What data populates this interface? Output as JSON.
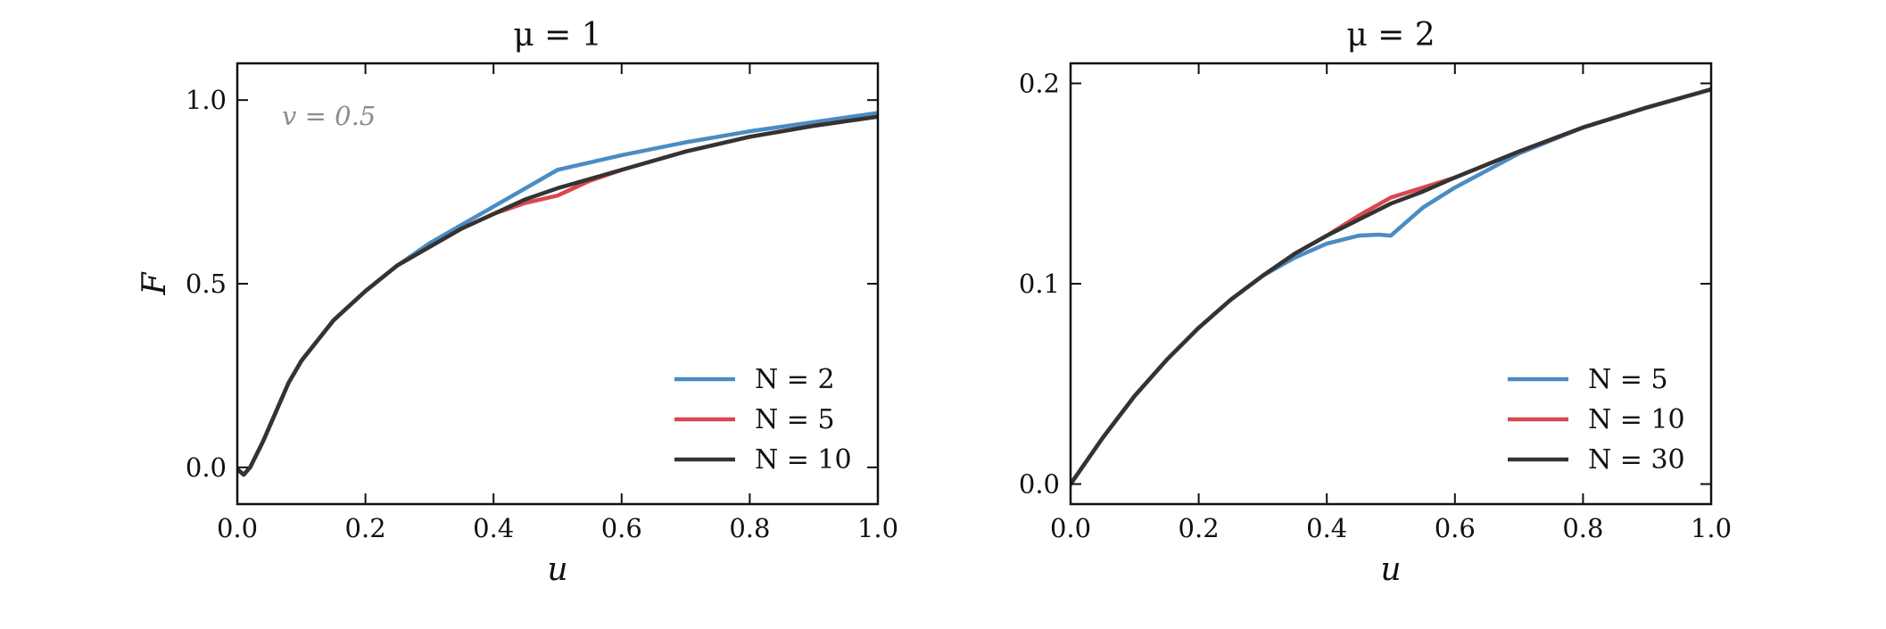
{
  "chart_data": [
    {
      "type": "line",
      "title": "μ = 1",
      "xlabel": "u",
      "ylabel": "F",
      "xlim": [
        0.0,
        1.0
      ],
      "ylim": [
        -0.1,
        1.1
      ],
      "xticks": [
        0.0,
        0.2,
        0.4,
        0.6,
        0.8,
        1.0
      ],
      "xtick_labels": [
        "0.0",
        "0.2",
        "0.4",
        "0.6",
        "0.8",
        "1.0"
      ],
      "yticks": [
        0.0,
        0.5,
        1.0
      ],
      "ytick_labels": [
        "0.0",
        "0.5",
        "1.0"
      ],
      "grid": false,
      "legend_position": "lower-right",
      "annotation": "v = 0.5",
      "series": [
        {
          "name": "N = 2",
          "color": "#4a8cc3",
          "x": [
            0.0,
            0.01,
            0.02,
            0.04,
            0.06,
            0.08,
            0.1,
            0.15,
            0.2,
            0.25,
            0.3,
            0.35,
            0.4,
            0.45,
            0.5,
            0.6,
            0.7,
            0.8,
            0.9,
            1.0
          ],
          "y": [
            -0.005,
            -0.02,
            0.0,
            0.07,
            0.15,
            0.23,
            0.29,
            0.4,
            0.48,
            0.55,
            0.61,
            0.66,
            0.71,
            0.76,
            0.81,
            0.85,
            0.885,
            0.915,
            0.94,
            0.965
          ]
        },
        {
          "name": "N = 5",
          "color": "#d9474f",
          "x": [
            0.0,
            0.01,
            0.02,
            0.04,
            0.06,
            0.08,
            0.1,
            0.15,
            0.2,
            0.25,
            0.3,
            0.35,
            0.4,
            0.45,
            0.5,
            0.55,
            0.6,
            0.7,
            0.8,
            0.9,
            1.0
          ],
          "y": [
            -0.005,
            -0.02,
            0.0,
            0.07,
            0.15,
            0.23,
            0.29,
            0.4,
            0.48,
            0.55,
            0.6,
            0.65,
            0.69,
            0.72,
            0.74,
            0.78,
            0.81,
            0.86,
            0.9,
            0.93,
            0.955
          ]
        },
        {
          "name": "N = 10",
          "color": "#333333",
          "x": [
            0.0,
            0.01,
            0.02,
            0.04,
            0.06,
            0.08,
            0.1,
            0.15,
            0.2,
            0.25,
            0.3,
            0.35,
            0.4,
            0.45,
            0.5,
            0.55,
            0.6,
            0.7,
            0.8,
            0.9,
            1.0
          ],
          "y": [
            -0.005,
            -0.02,
            0.0,
            0.07,
            0.15,
            0.23,
            0.29,
            0.4,
            0.48,
            0.55,
            0.6,
            0.65,
            0.69,
            0.73,
            0.76,
            0.785,
            0.81,
            0.86,
            0.9,
            0.93,
            0.955
          ]
        }
      ]
    },
    {
      "type": "line",
      "title": "μ = 2",
      "xlabel": "u",
      "ylabel": "",
      "xlim": [
        0.0,
        1.0
      ],
      "ylim": [
        -0.01,
        0.21
      ],
      "xticks": [
        0.0,
        0.2,
        0.4,
        0.6,
        0.8,
        1.0
      ],
      "xtick_labels": [
        "0.0",
        "0.2",
        "0.4",
        "0.6",
        "0.8",
        "1.0"
      ],
      "yticks": [
        0.0,
        0.1,
        0.2
      ],
      "ytick_labels": [
        "0.0",
        "0.1",
        "0.2"
      ],
      "grid": false,
      "legend_position": "lower-right",
      "series": [
        {
          "name": "N = 5",
          "color": "#4a8cc3",
          "x": [
            0.0,
            0.05,
            0.1,
            0.15,
            0.2,
            0.25,
            0.3,
            0.35,
            0.4,
            0.45,
            0.48,
            0.5,
            0.55,
            0.6,
            0.7,
            0.8,
            0.9,
            1.0
          ],
          "y": [
            0.0,
            0.023,
            0.044,
            0.062,
            0.078,
            0.092,
            0.104,
            0.113,
            0.12,
            0.124,
            0.1245,
            0.124,
            0.138,
            0.148,
            0.165,
            0.178,
            0.188,
            0.197
          ]
        },
        {
          "name": "N = 10",
          "color": "#d9474f",
          "x": [
            0.0,
            0.05,
            0.1,
            0.15,
            0.2,
            0.25,
            0.3,
            0.35,
            0.4,
            0.45,
            0.5,
            0.55,
            0.6,
            0.7,
            0.8,
            0.9,
            1.0
          ],
          "y": [
            0.0,
            0.023,
            0.044,
            0.062,
            0.078,
            0.092,
            0.104,
            0.115,
            0.124,
            0.134,
            0.143,
            0.148,
            0.153,
            0.166,
            0.178,
            0.188,
            0.197
          ]
        },
        {
          "name": "N = 30",
          "color": "#333333",
          "x": [
            0.0,
            0.05,
            0.1,
            0.15,
            0.2,
            0.25,
            0.3,
            0.35,
            0.4,
            0.45,
            0.5,
            0.55,
            0.6,
            0.7,
            0.8,
            0.9,
            1.0
          ],
          "y": [
            0.0,
            0.023,
            0.044,
            0.062,
            0.078,
            0.092,
            0.104,
            0.115,
            0.124,
            0.132,
            0.14,
            0.146,
            0.153,
            0.166,
            0.178,
            0.188,
            0.197
          ]
        }
      ]
    }
  ]
}
